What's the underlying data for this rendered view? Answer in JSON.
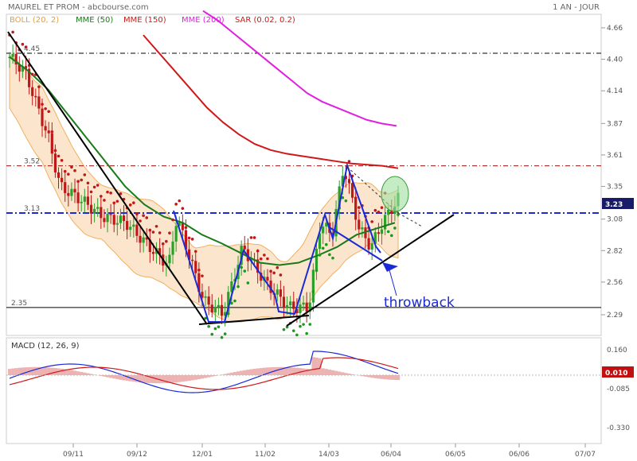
{
  "header": {
    "stock": "MAUREL ET PROM",
    "source": "abcbourse.com",
    "period": "1 AN - JOUR"
  },
  "indicators": [
    {
      "label": "BOLL (20, 2)",
      "color": "#e0a040"
    },
    {
      "label": "MME (50)",
      "color": "#1a7a1a"
    },
    {
      "label": "MME (150)",
      "color": "#d01818"
    },
    {
      "label": "MME (200)",
      "color": "#e020e0"
    },
    {
      "label": "SAR (0.02, 0.2)",
      "color": "#d01818"
    }
  ],
  "macd_label": "MACD (12, 26, 9)",
  "annotation": "throwback",
  "chart_data": {
    "type": "line",
    "price_axis": {
      "ticks": [
        "4.66",
        "4.40",
        "4.14",
        "3.87",
        "3.61",
        "3.35",
        "3.08",
        "2.82",
        "2.56",
        "2.29"
      ],
      "ylim": [
        2.2,
        4.8
      ]
    },
    "current_price": "3.23",
    "level_lines": [
      {
        "label": "4.45",
        "value": 4.45
      },
      {
        "label": "3.52",
        "value": 3.52
      },
      {
        "label": "3.13",
        "value": 3.13
      },
      {
        "label": "2.35",
        "value": 2.35
      }
    ],
    "x_ticks": [
      "09/11",
      "09/12",
      "12/01",
      "11/02",
      "14/03",
      "06/04",
      "06/05",
      "06/06",
      "07/07"
    ],
    "series": [
      {
        "name": "MME (150)",
        "values": [
          4.6,
          4.45,
          4.3,
          4.15,
          4.0,
          3.88,
          3.78,
          3.7,
          3.65,
          3.62,
          3.6,
          3.58,
          3.56,
          3.54,
          3.53,
          3.52,
          3.5
        ]
      },
      {
        "name": "MME (200)",
        "values": [
          4.8,
          4.72,
          4.62,
          4.52,
          4.42,
          4.32,
          4.22,
          4.12,
          4.05,
          4.0,
          3.95,
          3.9,
          3.87,
          3.85
        ]
      },
      {
        "name": "MME (50)",
        "values": [
          4.42,
          4.3,
          4.15,
          3.95,
          3.75,
          3.55,
          3.35,
          3.2,
          3.1,
          3.05,
          2.95,
          2.88,
          2.8,
          2.72,
          2.7,
          2.72,
          2.78,
          2.85,
          2.95,
          3.0,
          3.05
        ]
      }
    ],
    "macd": {
      "ticks": [
        "0.160",
        "-0.085",
        "-0.330"
      ],
      "ylim": [
        -0.42,
        0.22
      ],
      "current": "0.010"
    }
  }
}
